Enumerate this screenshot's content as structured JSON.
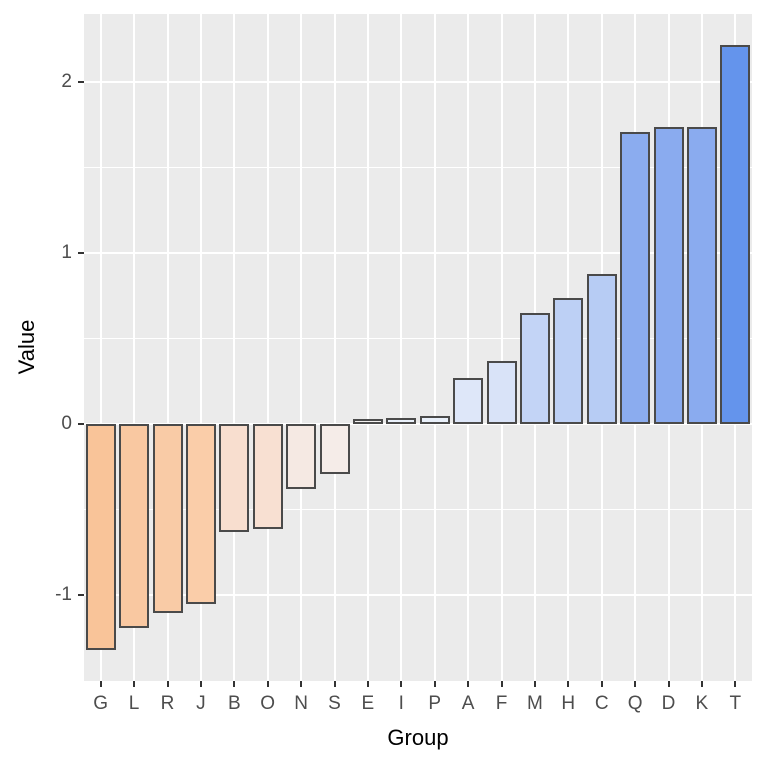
{
  "chart_data": {
    "type": "bar",
    "title": "",
    "xlabel": "Group",
    "ylabel": "Value",
    "categories": [
      "G",
      "L",
      "R",
      "J",
      "B",
      "O",
      "N",
      "S",
      "E",
      "I",
      "P",
      "A",
      "F",
      "M",
      "H",
      "C",
      "Q",
      "D",
      "K",
      "T"
    ],
    "values": [
      -1.32,
      -1.19,
      -1.1,
      -1.05,
      -0.63,
      -0.61,
      -0.38,
      -0.29,
      0.03,
      0.04,
      0.05,
      0.27,
      0.37,
      0.65,
      0.74,
      0.88,
      1.71,
      1.74,
      1.74,
      2.22
    ],
    "bar_colors": [
      "#F9C499",
      "#F9C8A1",
      "#F9CBA6",
      "#FACDA9",
      "#F8DECF",
      "#F8E0D2",
      "#F5E9E3",
      "#F5ECE8",
      "#F2F0EF",
      "#EAF1FB",
      "#E9F0FA",
      "#DEE7F9",
      "#D9E3F8",
      "#C3D4F6",
      "#BDD0F5",
      "#B7CCF4",
      "#8BACEF",
      "#8AABEF",
      "#8AABEF",
      "#6494EC"
    ],
    "bar_outline_color": "#4A4A4A",
    "y_major_ticks": [
      -1,
      0,
      1,
      2
    ],
    "y_tick_labels": [
      "-1",
      "0",
      "1",
      "2"
    ],
    "y_minor_ticks": [
      -0.5,
      0.5,
      1.5
    ],
    "ylim": [
      -1.5,
      2.4
    ],
    "grid": "on",
    "legend": "none",
    "panel_bg": "#EBEBEB",
    "grid_color": "#FFFFFF",
    "tick_mark_color": "#333333",
    "tick_label_color": "#4D4D4D",
    "axis_title_color": "#000000"
  }
}
